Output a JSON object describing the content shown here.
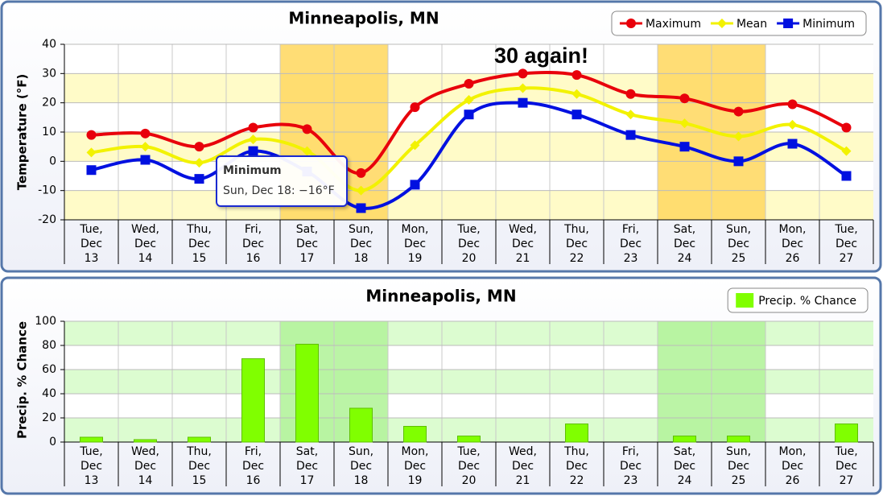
{
  "chart_data": [
    {
      "type": "line",
      "title": "Minneapolis, MN",
      "y_label": "Temperature (°F)",
      "categories": [
        "Tue,\nDec\n13",
        "Wed,\nDec\n14",
        "Thu,\nDec\n15",
        "Fri,\nDec\n16",
        "Sat,\nDec\n17",
        "Sun,\nDec\n18",
        "Mon,\nDec\n19",
        "Tue,\nDec\n20",
        "Wed,\nDec\n21",
        "Thu,\nDec\n22",
        "Fri,\nDec\n23",
        "Sat,\nDec\n24",
        "Sun,\nDec\n25",
        "Mon,\nDec\n26",
        "Tue,\nDec\n27"
      ],
      "highlight": [
        false,
        false,
        false,
        false,
        true,
        true,
        false,
        false,
        false,
        false,
        false,
        true,
        true,
        false,
        false
      ],
      "highlight_color": "#ffd966",
      "band_color": "#fffbc8",
      "series": [
        {
          "name": "Maximum",
          "color": "#e8000b",
          "marker": "circle",
          "values": [
            9,
            9.5,
            5,
            11.5,
            11,
            -4,
            18.5,
            26.5,
            30,
            29.5,
            23,
            21.5,
            17,
            19.5,
            11.5
          ]
        },
        {
          "name": "Mean",
          "color": "#f2f200",
          "marker": "diamond",
          "values": [
            3,
            5,
            -0.5,
            7.5,
            3.5,
            -10,
            5.5,
            21,
            25,
            23,
            16,
            13,
            8.5,
            12.5,
            3.5
          ]
        },
        {
          "name": "Minimum",
          "color": "#0010e0",
          "marker": "square",
          "values": [
            -3,
            0.5,
            -6,
            3.5,
            -3.5,
            -16,
            -8,
            16,
            20,
            16,
            9,
            5,
            0,
            6,
            -5
          ]
        }
      ],
      "ylim": [
        -20,
        40
      ],
      "yticks": [
        -20,
        -10,
        0,
        10,
        20,
        30,
        40
      ],
      "grid": true,
      "annotation": "30 again!",
      "tooltip": {
        "title": "Minimum",
        "text": "Sun, Dec 18: −16°F"
      }
    },
    {
      "type": "bar",
      "title": "Minneapolis, MN",
      "y_label": "Precip. % Chance",
      "categories": [
        "Tue,\nDec\n13",
        "Wed,\nDec\n14",
        "Thu,\nDec\n15",
        "Fri,\nDec\n16",
        "Sat,\nDec\n17",
        "Sun,\nDec\n18",
        "Mon,\nDec\n19",
        "Tue,\nDec\n20",
        "Wed,\nDec\n21",
        "Thu,\nDec\n22",
        "Fri,\nDec\n23",
        "Sat,\nDec\n24",
        "Sun,\nDec\n25",
        "Mon,\nDec\n26",
        "Tue,\nDec\n27"
      ],
      "highlight": [
        false,
        false,
        false,
        false,
        true,
        true,
        false,
        false,
        false,
        false,
        false,
        true,
        true,
        false,
        false
      ],
      "highlight_color": "#b4f39c",
      "band_color": "#dcfcd0",
      "series": [
        {
          "name": "Precip. % Chance",
          "color": "#80ff00",
          "values": [
            4,
            2,
            4,
            69,
            81,
            28,
            13,
            5,
            0,
            15,
            0,
            5,
            5,
            0,
            15
          ]
        }
      ],
      "ylim": [
        0,
        100
      ],
      "yticks": [
        0,
        20,
        40,
        60,
        80,
        100
      ],
      "grid": true
    }
  ]
}
